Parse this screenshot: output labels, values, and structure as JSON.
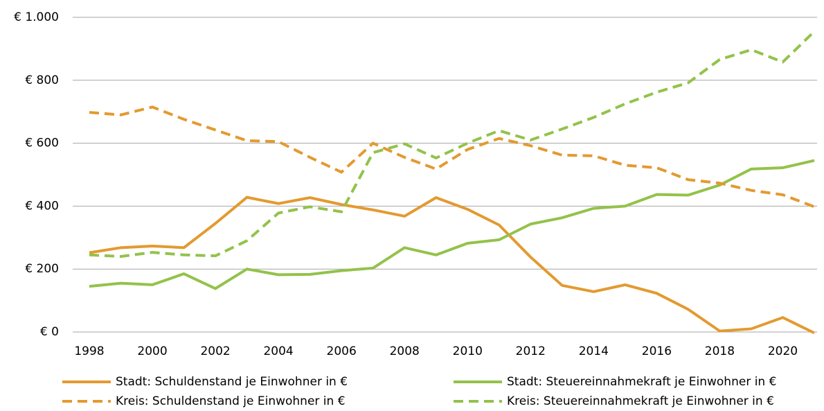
{
  "chart_data": {
    "type": "line",
    "x": [
      1998,
      1999,
      2000,
      2001,
      2002,
      2003,
      2004,
      2005,
      2006,
      2007,
      2008,
      2009,
      2010,
      2011,
      2012,
      2013,
      2014,
      2015,
      2016,
      2017,
      2018,
      2019,
      2020,
      2021
    ],
    "xlim": [
      1998,
      2021
    ],
    "xticks": [
      1998,
      2000,
      2002,
      2004,
      2006,
      2008,
      2010,
      2012,
      2014,
      2016,
      2018,
      2020
    ],
    "ylim": [
      0,
      1000
    ],
    "yticks": [
      {
        "value": 0,
        "label": "€ 0"
      },
      {
        "value": 200,
        "label": "€ 200"
      },
      {
        "value": 400,
        "label": "€ 400"
      },
      {
        "value": 600,
        "label": "€ 600"
      },
      {
        "value": 800,
        "label": "€ 800"
      },
      {
        "value": 1000,
        "label": "€ 1.000"
      }
    ],
    "grid": true,
    "legend": "bottom",
    "series": [
      {
        "name": "Stadt: Schuldenstand je Einwohner in €",
        "color": "#e39a30",
        "dashed": false,
        "values": [
          252,
          268,
          273,
          268,
          345,
          428,
          408,
          427,
          405,
          388,
          368,
          427,
          390,
          340,
          238,
          148,
          128,
          150,
          123,
          72,
          3,
          10,
          46,
          -3
        ]
      },
      {
        "name": "Stadt: Steuereinnahmekraft je Einwohner in €",
        "color": "#93c24a",
        "dashed": false,
        "values": [
          145,
          155,
          150,
          185,
          138,
          200,
          182,
          183,
          195,
          203,
          268,
          245,
          282,
          293,
          343,
          363,
          393,
          400,
          437,
          435,
          467,
          518,
          522,
          545
        ]
      },
      {
        "name": "Kreis: Schuldenstand je Einwohner in €",
        "color": "#e39a30",
        "dashed": true,
        "values": [
          698,
          690,
          715,
          676,
          642,
          608,
          605,
          555,
          508,
          600,
          555,
          518,
          580,
          615,
          592,
          562,
          560,
          530,
          522,
          484,
          473,
          450,
          436,
          398
        ]
      },
      {
        "name": "Kreis: Steuereinnahmekraft je Einwohner in €",
        "color": "#93c24a",
        "dashed": true,
        "values": [
          245,
          240,
          253,
          245,
          242,
          290,
          378,
          398,
          382,
          570,
          598,
          553,
          600,
          640,
          610,
          645,
          682,
          725,
          762,
          792,
          866,
          897,
          858,
          955
        ]
      }
    ]
  }
}
